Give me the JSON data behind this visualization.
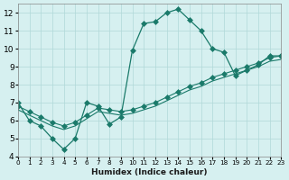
{
  "xlabel": "Humidex (Indice chaleur)",
  "ylabel": "",
  "bg_color": "#d6f0f0",
  "grid_color": "#b0d8d8",
  "line_color": "#1a7a6a",
  "xlim": [
    0,
    23
  ],
  "ylim": [
    4,
    12.5
  ],
  "xticks": [
    0,
    1,
    2,
    3,
    4,
    5,
    6,
    7,
    8,
    9,
    10,
    11,
    12,
    13,
    14,
    15,
    16,
    17,
    18,
    19,
    20,
    21,
    22,
    23
  ],
  "yticks": [
    4,
    5,
    6,
    7,
    8,
    9,
    10,
    11,
    12
  ],
  "line1_x": [
    0,
    1,
    2,
    3,
    4,
    5,
    6,
    7,
    8,
    9,
    10,
    11,
    12,
    13,
    14,
    15,
    16,
    17,
    18,
    19,
    20,
    21,
    22,
    23
  ],
  "line1_y": [
    7,
    6,
    5.7,
    5,
    4.4,
    5.0,
    7.0,
    6.8,
    5.8,
    6.2,
    9.9,
    11.4,
    11.5,
    12.0,
    12.2,
    11.6,
    11.0,
    10.0,
    9.8,
    8.5,
    8.8,
    9.1,
    9.6,
    9.6
  ],
  "line2_x": [
    0,
    1,
    2,
    3,
    4,
    5,
    6,
    7,
    8,
    9,
    10,
    11,
    12,
    13,
    14,
    15,
    16,
    17,
    18,
    19,
    20,
    21,
    22,
    23
  ],
  "line2_y": [
    6.8,
    6.5,
    6.2,
    5.9,
    5.7,
    5.9,
    6.3,
    6.7,
    6.6,
    6.5,
    6.6,
    6.8,
    7.0,
    7.3,
    7.6,
    7.9,
    8.1,
    8.4,
    8.6,
    8.8,
    9.0,
    9.2,
    9.5,
    9.6
  ],
  "line3_x": [
    0,
    1,
    2,
    3,
    4,
    5,
    6,
    7,
    8,
    9,
    10,
    11,
    12,
    13,
    14,
    15,
    16,
    17,
    18,
    19,
    20,
    21,
    22,
    23
  ],
  "line3_y": [
    6.6,
    6.3,
    6.0,
    5.7,
    5.5,
    5.7,
    6.1,
    6.5,
    6.4,
    6.3,
    6.4,
    6.6,
    6.8,
    7.1,
    7.4,
    7.7,
    7.9,
    8.2,
    8.4,
    8.6,
    8.8,
    9.0,
    9.3,
    9.4
  ],
  "marker": "D",
  "markersize": 3
}
